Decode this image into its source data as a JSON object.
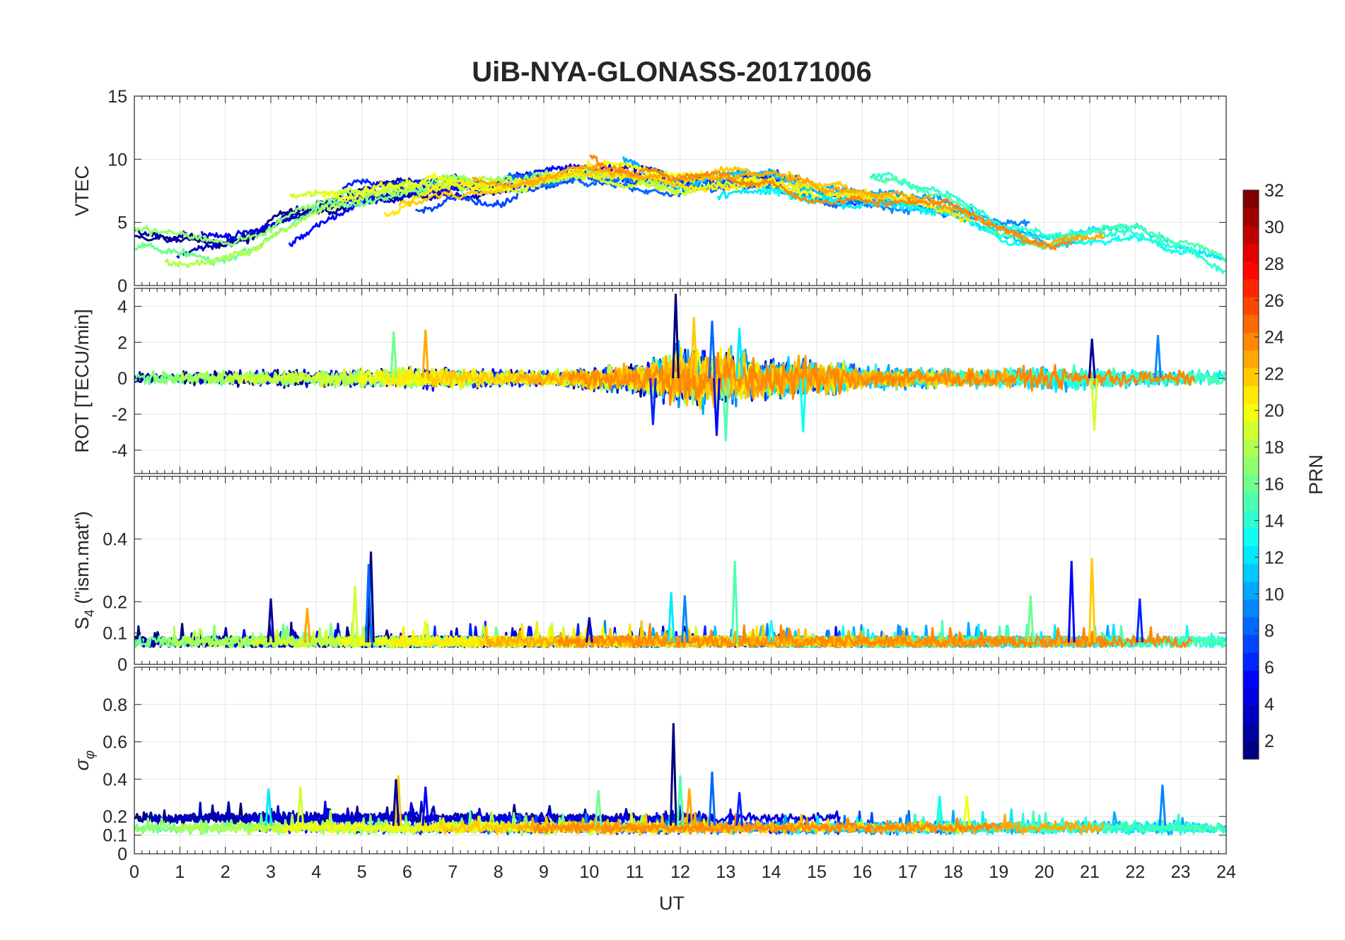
{
  "chart_data": {
    "type": "line",
    "title": "UiB-NYA-GLONASS-20171006",
    "xlabel": "UT",
    "x_ticks": [
      "0",
      "1",
      "2",
      "3",
      "4",
      "5",
      "6",
      "7",
      "8",
      "9",
      "10",
      "11",
      "12",
      "13",
      "14",
      "15",
      "16",
      "17",
      "18",
      "19",
      "20",
      "21",
      "22",
      "23",
      "24"
    ],
    "xlim": [
      0,
      24
    ],
    "grid": true,
    "colorbar": {
      "label": "PRN",
      "range": [
        1,
        32
      ],
      "ticks": [
        "2",
        "4",
        "6",
        "8",
        "10",
        "12",
        "14",
        "16",
        "18",
        "20",
        "22",
        "24",
        "26",
        "28",
        "30",
        "32"
      ],
      "colormap": "jet"
    },
    "panels": [
      {
        "id": "vtec",
        "ylabel": "VTEC",
        "ylim": [
          0,
          15
        ],
        "y_ticks": [
          0,
          5,
          10,
          15
        ],
        "y_tick_labels": [
          "0",
          "5",
          "10",
          "15"
        ],
        "envelope": [
          [
            0,
            3.2
          ],
          [
            1,
            3.0
          ],
          [
            2,
            3.1
          ],
          [
            3,
            4.5
          ],
          [
            4,
            6.0
          ],
          [
            5,
            7.0
          ],
          [
            6,
            7.5
          ],
          [
            7,
            8.0
          ],
          [
            8,
            7.8
          ],
          [
            9,
            8.5
          ],
          [
            10,
            9.0
          ],
          [
            11,
            8.5
          ],
          [
            12,
            8.0
          ],
          [
            13,
            8.5
          ],
          [
            14,
            8.5
          ],
          [
            15,
            7.5
          ],
          [
            16,
            7.0
          ],
          [
            17,
            6.8
          ],
          [
            18,
            6.2
          ],
          [
            19,
            4.5
          ],
          [
            20,
            3.5
          ],
          [
            21,
            4.0
          ],
          [
            22,
            4.3
          ],
          [
            23,
            3.0
          ],
          [
            24,
            2.0
          ]
        ],
        "spread": 2.6,
        "noise": 0.55
      },
      {
        "id": "rot",
        "ylabel": "ROT [TECU/min]",
        "ylim": [
          -5.3,
          5
        ],
        "y_ticks": [
          -4,
          -2,
          0,
          2,
          4
        ],
        "y_tick_labels": [
          "-4",
          "-2",
          "0",
          "2",
          "4"
        ],
        "envelope": [
          [
            0,
            0
          ],
          [
            24,
            0
          ]
        ],
        "activity": [
          [
            0,
            0.25
          ],
          [
            4,
            0.35
          ],
          [
            6,
            0.45
          ],
          [
            9,
            0.3
          ],
          [
            11,
            0.6
          ],
          [
            12,
            1.3
          ],
          [
            13,
            1.2
          ],
          [
            14,
            0.9
          ],
          [
            15,
            0.8
          ],
          [
            16,
            0.5
          ],
          [
            18,
            0.4
          ],
          [
            21,
            0.5
          ],
          [
            22,
            0.35
          ],
          [
            24,
            0.3
          ]
        ],
        "spikes": [
          [
            11.9,
            4.7
          ],
          [
            12.7,
            3.2
          ],
          [
            13.0,
            -3.5
          ],
          [
            12.3,
            3.4
          ],
          [
            12.8,
            -3.2
          ],
          [
            13.3,
            2.8
          ],
          [
            21.1,
            -2.9
          ],
          [
            21.05,
            2.2
          ],
          [
            22.5,
            2.4
          ],
          [
            5.7,
            2.6
          ],
          [
            6.4,
            2.7
          ],
          [
            11.4,
            -2.6
          ],
          [
            14.7,
            -3.0
          ]
        ]
      },
      {
        "id": "s4",
        "ylabel": "S4 (\"ism.mat\")",
        "ylim": [
          0,
          0.6
        ],
        "y_ticks": [
          0,
          0.1,
          0.2,
          0.4
        ],
        "y_tick_labels": [
          "0",
          "0.1",
          "0.2",
          "0.4"
        ],
        "spikes": [
          [
            5.2,
            0.36
          ],
          [
            5.15,
            0.32
          ],
          [
            13.2,
            0.33
          ],
          [
            21.05,
            0.34
          ],
          [
            20.6,
            0.33
          ],
          [
            11.8,
            0.23
          ],
          [
            4.85,
            0.25
          ],
          [
            3.0,
            0.21
          ],
          [
            12.1,
            0.22
          ],
          [
            19.7,
            0.22
          ],
          [
            3.8,
            0.18
          ],
          [
            22.1,
            0.21
          ],
          [
            14.0,
            0.14
          ],
          [
            6.4,
            0.14
          ],
          [
            10.0,
            0.15
          ]
        ]
      },
      {
        "id": "sigma",
        "ylabel": "σφ",
        "ylim": [
          0,
          1
        ],
        "y_ticks": [
          0,
          0.1,
          0.2,
          0.4,
          0.6,
          0.8
        ],
        "y_tick_labels": [
          "0",
          "0.1",
          "0.2",
          "0.4",
          "0.6",
          "0.8"
        ],
        "spikes": [
          [
            11.85,
            0.7
          ],
          [
            12.7,
            0.44
          ],
          [
            12.0,
            0.42
          ],
          [
            5.8,
            0.42
          ],
          [
            6.4,
            0.36
          ],
          [
            2.95,
            0.35
          ],
          [
            3.65,
            0.36
          ],
          [
            5.75,
            0.4
          ],
          [
            22.6,
            0.37
          ],
          [
            10.2,
            0.34
          ],
          [
            12.2,
            0.35
          ],
          [
            13.3,
            0.33
          ],
          [
            17.7,
            0.31
          ],
          [
            18.3,
            0.31
          ]
        ]
      }
    ]
  }
}
